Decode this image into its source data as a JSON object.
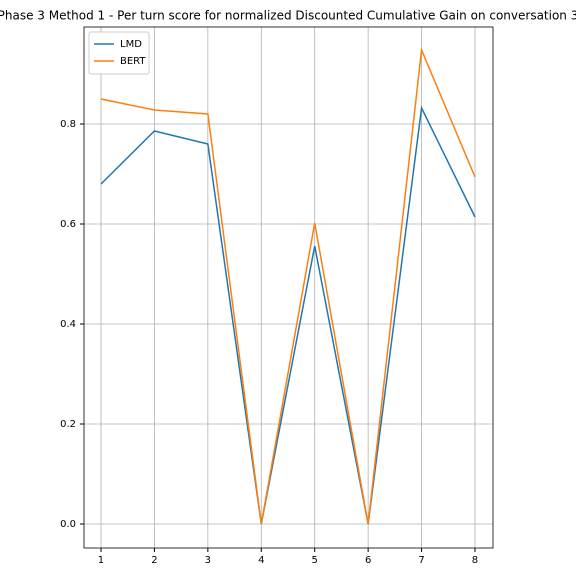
{
  "chart_data": {
    "type": "line",
    "title": "Phase 3 Method 1 - Per turn score for normalized Discounted Cumulative Gain on conversation 3",
    "x": [
      1,
      2,
      3,
      4,
      5,
      6,
      7,
      8
    ],
    "series": [
      {
        "name": "LMD",
        "color": "#1f77b4",
        "values": [
          0.68,
          0.786,
          0.76,
          0.0,
          0.556,
          0.0,
          0.832,
          0.614
        ]
      },
      {
        "name": "BERT",
        "color": "#ff7f0e",
        "values": [
          0.85,
          0.828,
          0.82,
          0.0,
          0.602,
          0.0,
          0.948,
          0.694
        ]
      }
    ],
    "xlim": [
      0.682,
      8.337
    ],
    "xticks": [
      1,
      2,
      3,
      4,
      5,
      6,
      7,
      8
    ],
    "ylim": [
      -0.048,
      0.994
    ],
    "yticks": [
      {
        "value": 0,
        "label": "0.0"
      },
      0.2,
      0.4,
      0.6,
      0.8
    ],
    "grid": true,
    "legend": "upper-left"
  }
}
